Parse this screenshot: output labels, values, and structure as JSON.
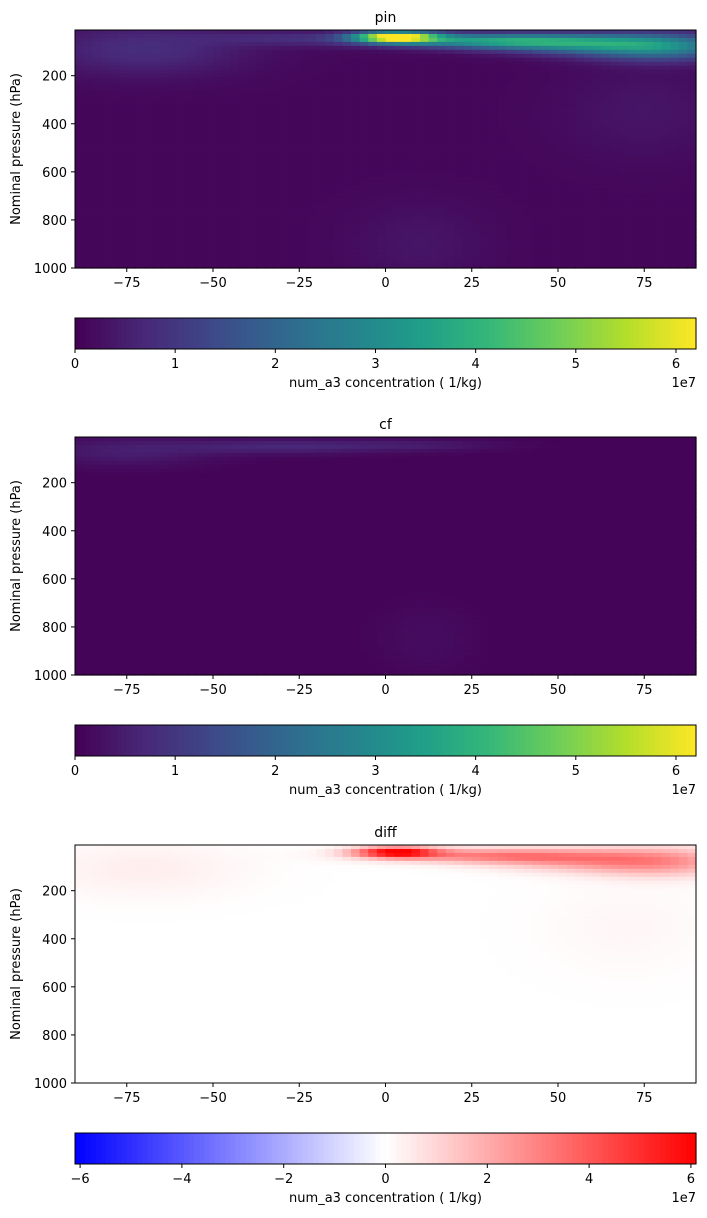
{
  "figure": {
    "colormaps": {
      "viridis": [
        "#440154",
        "#482878",
        "#3e4989",
        "#31688e",
        "#26828e",
        "#1f9e89",
        "#35b779",
        "#6ece58",
        "#b5de2b",
        "#fde725"
      ],
      "bwr": [
        "#0000ff",
        "#ffffff",
        "#ff0000"
      ]
    }
  },
  "chart_data": [
    {
      "type": "heatmap",
      "title": "pin",
      "ylabel": "Nominal pressure (hPa)",
      "xlabel": "",
      "xlim": [
        -90,
        90
      ],
      "ylim": [
        1000,
        10
      ],
      "xticks": [
        -75,
        -50,
        -25,
        0,
        25,
        50,
        75
      ],
      "xtick_labels": [
        "−75",
        "−50",
        "−25",
        "0",
        "25",
        "50",
        "75"
      ],
      "yticks": [
        200,
        400,
        600,
        800,
        1000
      ],
      "ytick_labels": [
        "200",
        "400",
        "600",
        "800",
        "1000"
      ],
      "colormap": "viridis",
      "colorbar": {
        "label": "num_a3 concentration ( 1/kg)",
        "range": [
          0,
          6.2
        ],
        "ticks": [
          0,
          1,
          2,
          3,
          4,
          5,
          6
        ],
        "tick_labels": [
          "0",
          "1",
          "2",
          "3",
          "4",
          "5",
          "6"
        ],
        "multiplier": "1e7"
      },
      "features": [
        {
          "lat": 3,
          "plev": 40,
          "value": 6.2,
          "lat_width": 12,
          "plev_width": 22
        },
        {
          "lat": 30,
          "plev": 55,
          "value": 3.0,
          "lat_width": 30,
          "plev_width": 30
        },
        {
          "lat": 80,
          "plev": 80,
          "value": 2.6,
          "lat_width": 22,
          "plev_width": 55
        },
        {
          "lat": 55,
          "plev": 70,
          "value": 2.0,
          "lat_width": 25,
          "plev_width": 40
        },
        {
          "lat": -70,
          "plev": 90,
          "value": 0.7,
          "lat_width": 30,
          "plev_width": 110
        },
        {
          "lat": -25,
          "plev": 45,
          "value": 0.6,
          "lat_width": 25,
          "plev_width": 30
        },
        {
          "lat": 75,
          "plev": 350,
          "value": 0.25,
          "lat_width": 25,
          "plev_width": 200
        },
        {
          "lat": 10,
          "plev": 900,
          "value": 0.25,
          "lat_width": 20,
          "plev_width": 180
        }
      ],
      "background": 0.1
    },
    {
      "type": "heatmap",
      "title": "cf",
      "ylabel": "Nominal pressure (hPa)",
      "xlabel": "",
      "xlim": [
        -90,
        90
      ],
      "ylim": [
        1000,
        10
      ],
      "xticks": [
        -75,
        -50,
        -25,
        0,
        25,
        50,
        75
      ],
      "xtick_labels": [
        "−75",
        "−50",
        "−25",
        "0",
        "25",
        "50",
        "75"
      ],
      "yticks": [
        200,
        400,
        600,
        800,
        1000
      ],
      "ytick_labels": [
        "200",
        "400",
        "600",
        "800",
        "1000"
      ],
      "colormap": "viridis",
      "colorbar": {
        "label": "num_a3 concentration ( 1/kg)",
        "range": [
          0,
          6.2
        ],
        "ticks": [
          0,
          1,
          2,
          3,
          4,
          5,
          6
        ],
        "tick_labels": [
          "0",
          "1",
          "2",
          "3",
          "4",
          "5",
          "6"
        ],
        "multiplier": "1e7"
      },
      "features": [
        {
          "lat": -30,
          "plev": 50,
          "value": 0.6,
          "lat_width": 30,
          "plev_width": 30
        },
        {
          "lat": -75,
          "plev": 70,
          "value": 0.45,
          "lat_width": 25,
          "plev_width": 60
        },
        {
          "lat": 10,
          "plev": 45,
          "value": 0.35,
          "lat_width": 25,
          "plev_width": 25
        },
        {
          "lat": 12,
          "plev": 850,
          "value": 0.15,
          "lat_width": 15,
          "plev_width": 150
        }
      ],
      "background": 0.05
    },
    {
      "type": "heatmap",
      "title": "diff",
      "ylabel": "Nominal pressure (hPa)",
      "xlabel": "",
      "xlim": [
        -90,
        90
      ],
      "ylim": [
        1000,
        10
      ],
      "xticks": [
        -75,
        -50,
        -25,
        0,
        25,
        50,
        75
      ],
      "xtick_labels": [
        "−75",
        "−50",
        "−25",
        "0",
        "25",
        "50",
        "75"
      ],
      "yticks": [
        200,
        400,
        600,
        800,
        1000
      ],
      "ytick_labels": [
        "200",
        "400",
        "600",
        "800",
        "1000"
      ],
      "colormap": "bwr",
      "colorbar": {
        "label": "num_a3 concentration ( 1/kg)",
        "range": [
          -6.1,
          6.1
        ],
        "ticks": [
          -6,
          -4,
          -2,
          0,
          2,
          4,
          6
        ],
        "tick_labels": [
          "−6",
          "−4",
          "−2",
          "0",
          "2",
          "4",
          "6"
        ],
        "multiplier": "1e7"
      },
      "features": [
        {
          "lat": 3,
          "plev": 40,
          "value": 6.0,
          "lat_width": 12,
          "plev_width": 22
        },
        {
          "lat": 30,
          "plev": 55,
          "value": 2.8,
          "lat_width": 30,
          "plev_width": 30
        },
        {
          "lat": 80,
          "plev": 80,
          "value": 2.4,
          "lat_width": 22,
          "plev_width": 60
        },
        {
          "lat": 55,
          "plev": 75,
          "value": 1.8,
          "lat_width": 25,
          "plev_width": 45
        },
        {
          "lat": -70,
          "plev": 110,
          "value": 0.4,
          "lat_width": 30,
          "plev_width": 120
        },
        {
          "lat": 70,
          "plev": 350,
          "value": 0.2,
          "lat_width": 25,
          "plev_width": 200
        }
      ],
      "background": 0.0
    }
  ]
}
